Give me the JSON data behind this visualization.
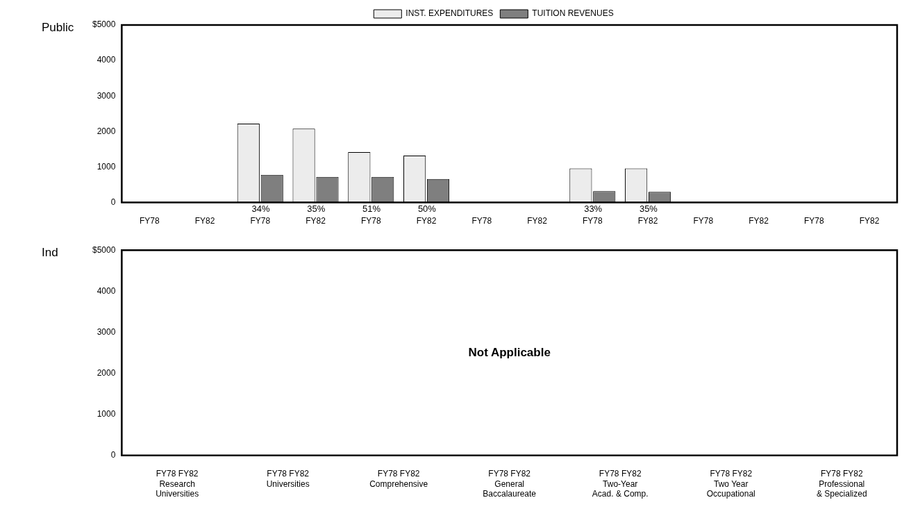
{
  "chart_data": [
    {
      "type": "bar",
      "ylabel": "Public",
      "legend": "top",
      "categories": [
        "FY78",
        "FY82",
        "FY78",
        "FY82",
        "FY78",
        "FY82",
        "FY78",
        "FY82",
        "FY78",
        "FY82",
        "FY78",
        "FY82",
        "FY78",
        "FY82"
      ],
      "series": [
        {
          "name": "INST. EXPENDITURES",
          "color": "#ececec",
          "values": [
            null,
            null,
            2220,
            2080,
            1420,
            1320,
            null,
            null,
            960,
            960,
            null,
            null,
            null,
            null
          ]
        },
        {
          "name": "TUITION REVENUES",
          "color": "#7f7f7f",
          "values": [
            null,
            null,
            780,
            720,
            720,
            660,
            null,
            null,
            320,
            300,
            null,
            null,
            null,
            null
          ]
        }
      ],
      "annotations": [
        "34%",
        "35%",
        "51%",
        "50%",
        "33%",
        "35%"
      ],
      "ylim": [
        0,
        5000
      ],
      "yticks": [
        0,
        1000,
        2000,
        3000,
        4000,
        {
          "value": 5000,
          "label": "$5000"
        }
      ]
    },
    {
      "type": "bar",
      "ylabel": "Ind",
      "legend": false,
      "categories": [
        "FY78 FY82\nResearch\nUniversities",
        "FY78 FY82\nUniversities",
        "FY78 FY82\nComprehensive",
        "FY78 FY82\nGeneral\nBaccalaureate",
        "FY78 FY82\nTwo-Year\nAcad. & Comp.",
        "FY78 FY82\nTwo Year\nOccupational",
        "FY78 FY82\nProfessional\n& Specialized"
      ],
      "annotations": [
        "Not Applicable"
      ],
      "ylim": [
        0,
        5000
      ],
      "yticks": [
        0,
        1000,
        2000,
        3000,
        4000,
        {
          "value": 5000,
          "label": "$5000"
        }
      ]
    }
  ]
}
